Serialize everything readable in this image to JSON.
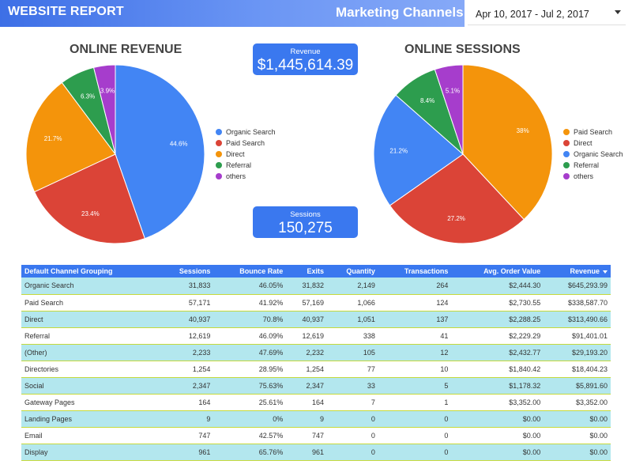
{
  "header": {
    "title": "WEBSITE REPORT",
    "subtitle": "Marketing Channels"
  },
  "date_range": {
    "value": "Apr 10, 2017 - Jul 2, 2017"
  },
  "kpis": {
    "revenue": {
      "label": "Revenue",
      "value": "$1,445,614.39"
    },
    "sessions": {
      "label": "Sessions",
      "value": "150,275"
    }
  },
  "colors": {
    "blue": "#4285f4",
    "red": "#db4437",
    "orange": "#f4940b",
    "green": "#2d9d4e",
    "purple": "#a63dcc",
    "header": "#3d6fe6",
    "table_header": "#3a78ef",
    "row_alt": "#b3e7ee"
  },
  "chart_data": [
    {
      "type": "pie",
      "title": "ONLINE REVENUE",
      "categories": [
        "Organic Search",
        "Paid Search",
        "Direct",
        "Referral",
        "others"
      ],
      "values": [
        44.6,
        23.4,
        21.7,
        6.3,
        3.9
      ],
      "labels": [
        "44.6%",
        "23.4%",
        "21.7%",
        "6.3%",
        "3.9%"
      ],
      "colors": [
        "#4285f4",
        "#db4437",
        "#f4940b",
        "#2d9d4e",
        "#a63dcc"
      ],
      "legend": "right"
    },
    {
      "type": "pie",
      "title": "ONLINE SESSIONS",
      "categories": [
        "Paid Search",
        "Direct",
        "Organic Search",
        "Referral",
        "others"
      ],
      "values": [
        38,
        27.2,
        21.2,
        8.4,
        5.1
      ],
      "labels": [
        "38%",
        "27.2%",
        "21.2%",
        "8.4%",
        "5.1%"
      ],
      "colors": [
        "#f4940b",
        "#db4437",
        "#4285f4",
        "#2d9d4e",
        "#a63dcc"
      ],
      "legend": "right"
    }
  ],
  "table": {
    "headers": [
      "Default Channel Grouping",
      "Sessions",
      "Bounce Rate",
      "Exits",
      "Quantity",
      "Transactions",
      "Avg. Order Value",
      "Revenue"
    ],
    "rows": [
      [
        "Organic Search",
        "31,833",
        "46.05%",
        "31,832",
        "2,149",
        "264",
        "$2,444.30",
        "$645,293.99"
      ],
      [
        "Paid Search",
        "57,171",
        "41.92%",
        "57,169",
        "1,066",
        "124",
        "$2,730.55",
        "$338,587.70"
      ],
      [
        "Direct",
        "40,937",
        "70.8%",
        "40,937",
        "1,051",
        "137",
        "$2,288.25",
        "$313,490.66"
      ],
      [
        "Referral",
        "12,619",
        "46.09%",
        "12,619",
        "338",
        "41",
        "$2,229.29",
        "$91,401.01"
      ],
      [
        "(Other)",
        "2,233",
        "47.69%",
        "2,232",
        "105",
        "12",
        "$2,432.77",
        "$29,193.20"
      ],
      [
        "Directories",
        "1,254",
        "28.95%",
        "1,254",
        "77",
        "10",
        "$1,840.42",
        "$18,404.23"
      ],
      [
        "Social",
        "2,347",
        "75.63%",
        "2,347",
        "33",
        "5",
        "$1,178.32",
        "$5,891.60"
      ],
      [
        "Gateway Pages",
        "164",
        "25.61%",
        "164",
        "7",
        "1",
        "$3,352.00",
        "$3,352.00"
      ],
      [
        "Landing Pages",
        "9",
        "0%",
        "9",
        "0",
        "0",
        "$0.00",
        "$0.00"
      ],
      [
        "Email",
        "747",
        "42.57%",
        "747",
        "0",
        "0",
        "$0.00",
        "$0.00"
      ],
      [
        "Display",
        "961",
        "65.76%",
        "961",
        "0",
        "0",
        "$0.00",
        "$0.00"
      ]
    ]
  }
}
